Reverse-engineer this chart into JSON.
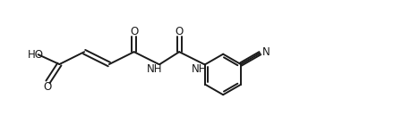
{
  "bg_color": "#ffffff",
  "line_color": "#1a1a1a",
  "line_width": 1.4,
  "text_color": "#1a1a1a",
  "font_size": 8.5,
  "fig_width": 4.4,
  "fig_height": 1.57,
  "xlim": [
    0,
    44
  ],
  "ylim": [
    0,
    15.7
  ]
}
